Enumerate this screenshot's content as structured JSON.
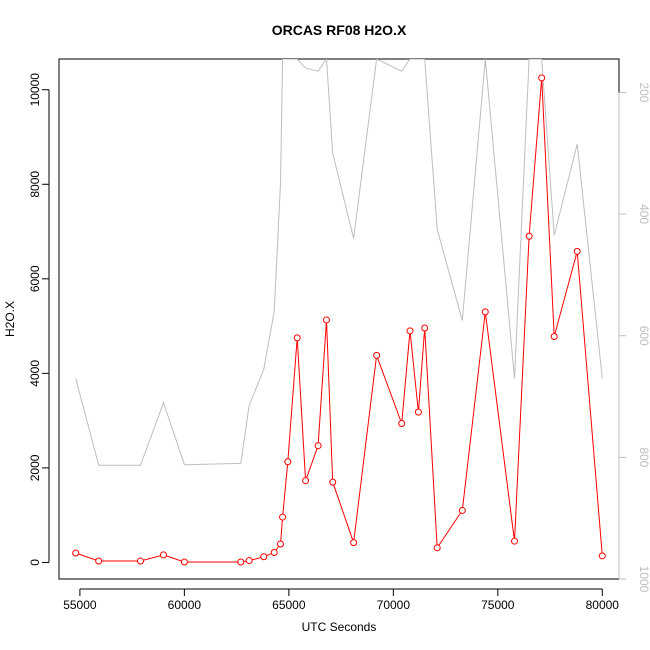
{
  "chart_data": {
    "type": "line",
    "title": "ORCAS RF08 H2O.X",
    "xlabel": "UTC Seconds",
    "ylabel": "H2O.X",
    "xlim": [
      54000,
      80800
    ],
    "ylim": [
      -350,
      10650
    ],
    "xticks": [
      55000,
      60000,
      65000,
      70000,
      75000,
      80000
    ],
    "yticks": [
      0,
      2000,
      4000,
      6000,
      8000,
      10000
    ],
    "secondary_axis": {
      "side": "right",
      "reversed": true,
      "ylim": [
        1000,
        145
      ],
      "ticks": [
        200,
        400,
        600,
        800,
        1000
      ],
      "color": "#bebebe"
    },
    "grid": false,
    "series": [
      {
        "axis": "left",
        "color": "#ff0000",
        "markers": "open-circle",
        "x": [
          54800,
          55900,
          57900,
          59000,
          60000,
          62700,
          63100,
          63800,
          64300,
          64600,
          64700,
          64950,
          65400,
          65800,
          66400,
          66800,
          67100,
          68100,
          69200,
          70400,
          70800,
          71200,
          71500,
          72100,
          73300,
          74400,
          75800,
          76500,
          77100,
          77700,
          78800,
          80000
        ],
        "y": [
          200,
          30,
          30,
          160,
          10,
          10,
          40,
          120,
          210,
          390,
          960,
          2130,
          4750,
          1730,
          2470,
          5130,
          1700,
          420,
          4380,
          2940,
          4900,
          3180,
          4960,
          310,
          1100,
          5300,
          450,
          6900,
          10250,
          4780,
          6580,
          140
        ]
      },
      {
        "axis": "right",
        "color": "#bebebe",
        "markers": "none",
        "x": [
          54800,
          55900,
          57900,
          59000,
          60000,
          62700,
          63100,
          63800,
          64300,
          64600,
          64700,
          64950,
          65400,
          65800,
          66400,
          66800,
          67100,
          68100,
          69200,
          70400,
          70800,
          71200,
          71500,
          72100,
          73300,
          74400,
          75800,
          76500,
          77100,
          77700,
          78800,
          80000
        ],
        "y": [
          670,
          813,
          813,
          710,
          812,
          810,
          715,
          655,
          560,
          350,
          145,
          145,
          145,
          160,
          165,
          145,
          300,
          440,
          145,
          165,
          145,
          145,
          145,
          425,
          575,
          145,
          670,
          145,
          145,
          435,
          285,
          670
        ]
      }
    ]
  }
}
